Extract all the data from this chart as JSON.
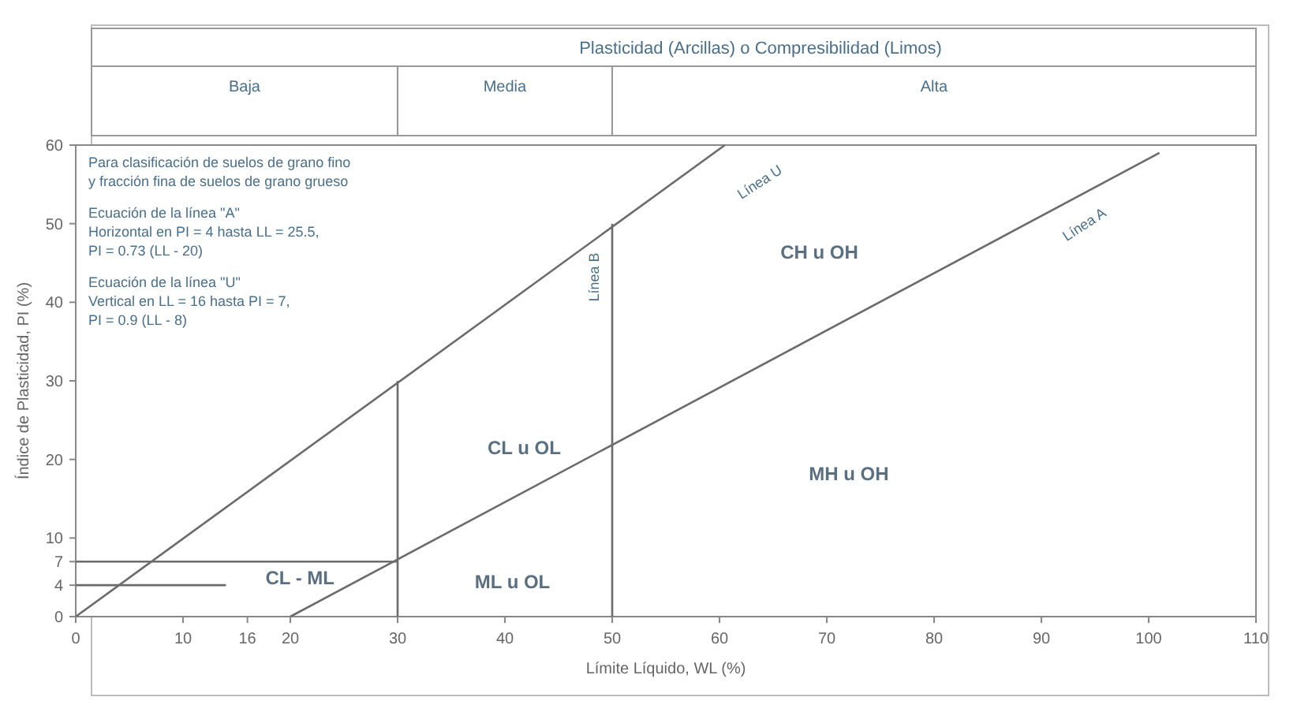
{
  "chart_data": {
    "type": "line",
    "title": "Plasticidad (Arcillas) o Compresibilidad (Limos)",
    "xlabel": "Límite Líquido, WL (%)",
    "ylabel": "Índice de Plasticidad, PI (%)",
    "xlim": [
      0,
      110
    ],
    "xticks": [
      0,
      10,
      16,
      20,
      30,
      40,
      50,
      60,
      70,
      80,
      90,
      100,
      110
    ],
    "ylim": [
      0,
      60
    ],
    "yticks": [
      0,
      4,
      7,
      10,
      20,
      30,
      40,
      50,
      60
    ],
    "grid": false,
    "marker": "none",
    "line_style": "solid",
    "series": [
      {
        "color": "#6b6b6b",
        "x": [
          0,
          60.5
        ],
        "values": [
          0,
          60
        ]
      },
      {
        "color": "#6b6b6b",
        "x": [
          20,
          101
        ],
        "values": [
          0,
          59
        ]
      },
      {
        "color": "#6b6b6b",
        "x": [
          30,
          30
        ],
        "values": [
          0,
          30
        ]
      },
      {
        "color": "#6b6b6b",
        "x": [
          50,
          50
        ],
        "values": [
          0,
          50
        ]
      },
      {
        "color": "#6b6b6b",
        "x": [
          0,
          30
        ],
        "values": [
          7,
          7
        ]
      },
      {
        "color": "#6b6b6b",
        "x": [
          0,
          14
        ],
        "values": [
          4,
          4
        ]
      }
    ],
    "annotations": [
      "Para clasificación de suelos de grano fino",
      "y fracción fina de suelos de grano grueso",
      "Ecuación de la línea \"A\"",
      "Horizontal en PI = 4 hasta LL = 25.5,",
      "PI = 0.73 (LL - 20)",
      "Ecuación de la línea \"U\"",
      "Vertical en LL = 16 hasta PI = 7,",
      "PI = 0.9 (LL - 8)",
      "CL u OL",
      "ML u OL",
      "CH u OH",
      "MH u OH",
      "CL - ML",
      "Línea U",
      "Línea A",
      "Línea B",
      "Baja",
      "Media",
      "Alta"
    ]
  }
}
